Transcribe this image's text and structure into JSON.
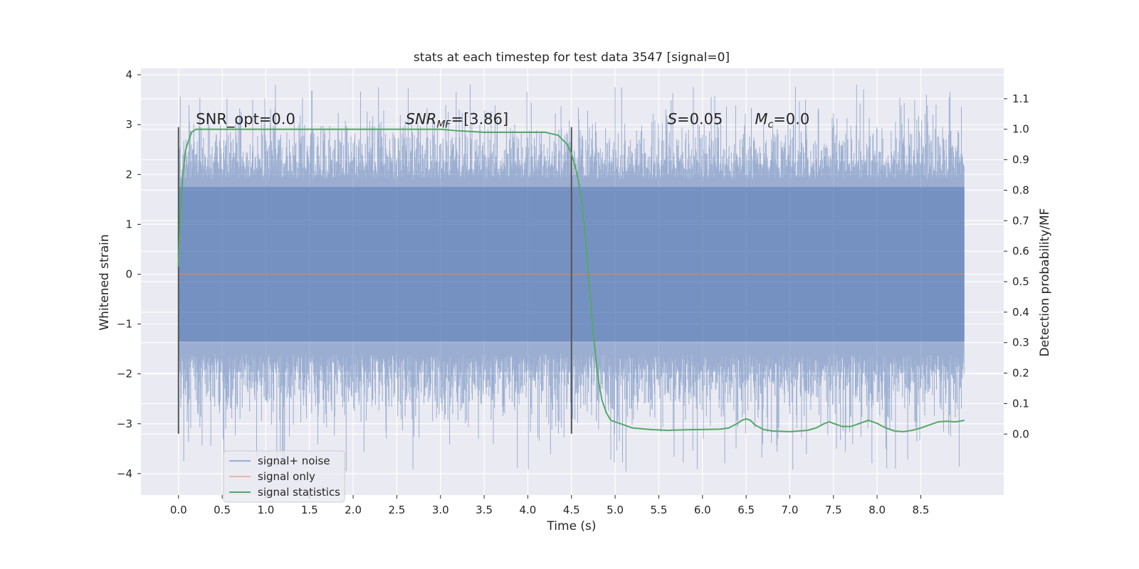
{
  "chart_data": {
    "type": "line",
    "title": "stats at each timestep for test data 3547 [signal=0]",
    "xlabel": "Time (s)",
    "ylabel": "Whitened strain",
    "ylabel_right": "Detection probability/MF",
    "xlim": [
      -0.43,
      9.45
    ],
    "ylim": [
      -4.43,
      4.13
    ],
    "ylim_right": [
      -0.2,
      1.2
    ],
    "x_ticks": [
      0.0,
      0.5,
      1.0,
      1.5,
      2.0,
      2.5,
      3.0,
      3.5,
      4.0,
      4.5,
      5.0,
      5.5,
      6.0,
      6.5,
      7.0,
      7.5,
      8.0,
      8.5
    ],
    "x_tick_labels": [
      "0.0",
      "0.5",
      "1.0",
      "1.5",
      "2.0",
      "2.5",
      "3.0",
      "3.5",
      "4.0",
      "4.5",
      "5.0",
      "5.5",
      "6.0",
      "6.5",
      "7.0",
      "7.5",
      "8.0",
      "8.5"
    ],
    "y_ticks": [
      4,
      3,
      2,
      1,
      0,
      -1,
      -2,
      -3,
      -4
    ],
    "y_tick_labels": [
      "4",
      "3",
      "2",
      "1",
      "0",
      "−1",
      "−2",
      "−3",
      "−4"
    ],
    "y2_ticks": [
      1.1,
      1.0,
      0.9,
      0.8,
      0.7,
      0.6,
      0.5,
      0.4,
      0.3,
      0.2,
      0.1,
      0.0
    ],
    "y2_tick_labels": [
      "1.1",
      "1.0",
      "0.9",
      "0.8",
      "0.7",
      "0.6",
      "0.5",
      "0.4",
      "0.3",
      "0.2",
      "0.1",
      "0.0"
    ],
    "grid": true,
    "legend_position": "lower-left",
    "legend": [
      "signal+ noise",
      "signal only",
      "signal statistics"
    ],
    "colors": {
      "signal_noise": "#4c72b0",
      "signal_only": "#dd8452",
      "signal_statistics": "#55a868",
      "vlines": "#555555",
      "background": "#eaeaf2"
    },
    "noise": {
      "x_range": [
        0.0,
        9.0
      ],
      "core_range": [
        -1.35,
        1.75
      ],
      "typical_range": [
        -2.5,
        2.7
      ],
      "extreme_range": [
        -4.0,
        3.8
      ]
    },
    "signal_only": {
      "x": [
        0.0,
        9.0
      ],
      "y": [
        0.0,
        0.0
      ]
    },
    "signal_statistics": {
      "x": [
        0.0,
        0.02,
        0.05,
        0.08,
        0.1,
        0.15,
        0.2,
        0.3,
        0.5,
        1.0,
        2.0,
        2.5,
        3.0,
        3.2,
        3.5,
        3.8,
        4.0,
        4.2,
        4.35,
        4.45,
        4.5,
        4.55,
        4.6,
        4.65,
        4.7,
        4.75,
        4.8,
        4.85,
        4.9,
        4.95,
        5.0,
        5.1,
        5.2,
        5.4,
        5.6,
        5.8,
        6.0,
        6.2,
        6.3,
        6.4,
        6.45,
        6.5,
        6.55,
        6.6,
        6.7,
        6.8,
        7.0,
        7.2,
        7.3,
        7.4,
        7.45,
        7.5,
        7.6,
        7.7,
        7.8,
        7.9,
        7.95,
        8.0,
        8.1,
        8.2,
        8.3,
        8.4,
        8.5,
        8.6,
        8.7,
        8.8,
        8.9,
        9.0
      ],
      "y": [
        0.55,
        0.72,
        0.85,
        0.93,
        0.95,
        0.99,
        1.0,
        1.0,
        1.0,
        1.0,
        1.0,
        1.0,
        1.0,
        0.995,
        0.99,
        0.99,
        0.99,
        0.99,
        0.98,
        0.95,
        0.92,
        0.87,
        0.8,
        0.68,
        0.5,
        0.33,
        0.19,
        0.11,
        0.07,
        0.045,
        0.04,
        0.03,
        0.02,
        0.015,
        0.012,
        0.014,
        0.015,
        0.016,
        0.02,
        0.035,
        0.045,
        0.05,
        0.045,
        0.03,
        0.015,
        0.01,
        0.008,
        0.012,
        0.02,
        0.035,
        0.04,
        0.035,
        0.025,
        0.025,
        0.035,
        0.045,
        0.04,
        0.035,
        0.02,
        0.01,
        0.008,
        0.012,
        0.02,
        0.03,
        0.04,
        0.042,
        0.04,
        0.045
      ]
    },
    "vertical_lines": [
      {
        "x": 0.0,
        "y_range": [
          -3.2,
          2.95
        ]
      },
      {
        "x": 4.5,
        "y_range": [
          -3.2,
          2.95
        ]
      }
    ],
    "annotations": [
      {
        "text": "SNR_opt=0.0",
        "x": 0.2,
        "y": 3.0,
        "style": "plain"
      },
      {
        "text": "=[3.86]",
        "prefix": "SNR",
        "subscript": "MF",
        "x": 2.6,
        "y": 3.0,
        "style": "math"
      },
      {
        "text": "=0.05",
        "prefix": "S",
        "subscript": "",
        "x": 5.6,
        "y": 3.0,
        "style": "math"
      },
      {
        "text": "=0.0",
        "prefix": "M",
        "subscript": "c",
        "x": 6.6,
        "y": 3.0,
        "style": "math"
      }
    ]
  }
}
